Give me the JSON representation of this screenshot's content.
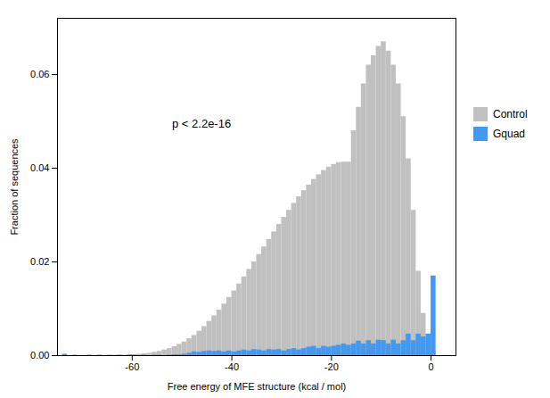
{
  "chart_data": {
    "type": "histogram",
    "xlabel": "Free energy of MFE structure (kcal / mol)",
    "ylabel": "Fraction of sequences",
    "annotations": [
      {
        "text": "p < 2.2e-16",
        "x": -52,
        "y": 0.048
      }
    ],
    "xlim": [
      -75,
      5
    ],
    "ylim": [
      0,
      0.072
    ],
    "xticks": [
      -60,
      -40,
      -20,
      0
    ],
    "yticks": [
      {
        "value": 0,
        "label": "0.00"
      },
      0.02,
      0.04,
      0.06
    ],
    "legend": "right",
    "bins": [
      -74,
      -73,
      -72,
      -71,
      -70,
      -69,
      -68,
      -67,
      -66,
      -65,
      -64,
      -63,
      -62,
      -61,
      -60,
      -59,
      -58,
      -57,
      -56,
      -55,
      -54,
      -53,
      -52,
      -51,
      -50,
      -49,
      -48,
      -47,
      -46,
      -45,
      -44,
      -43,
      -42,
      -41,
      -40,
      -39,
      -38,
      -37,
      -36,
      -35,
      -34,
      -33,
      -32,
      -31,
      -30,
      -29,
      -28,
      -27,
      -26,
      -25,
      -24,
      -23,
      -22,
      -21,
      -20,
      -19,
      -18,
      -17,
      -16,
      -15,
      -14,
      -13,
      -12,
      -11,
      -10,
      -9,
      -8,
      -7,
      -6,
      -5,
      -4,
      -3,
      -2,
      -1,
      0,
      1
    ],
    "series": [
      {
        "name": "Control",
        "color": "#c0c0c0",
        "values": [
          null,
          0.0,
          0.0,
          0.0,
          0.0,
          0.0,
          0.0,
          0.0,
          0.0,
          0.0,
          0.0001,
          0.0001,
          0.0001,
          0.0002,
          0.0002,
          0.0003,
          0.0004,
          0.0005,
          0.0007,
          0.0009,
          0.0012,
          0.0015,
          0.0019,
          0.0024,
          0.0029,
          0.0036,
          0.0043,
          0.0052,
          0.0062,
          0.0073,
          0.0085,
          0.0097,
          0.011,
          0.0124,
          0.0138,
          0.0153,
          0.0168,
          0.0184,
          0.02,
          0.0216,
          0.0232,
          0.0248,
          0.0264,
          0.028,
          0.0295,
          0.031,
          0.0325,
          0.0339,
          0.0352,
          0.0364,
          0.0376,
          0.0386,
          0.0395,
          0.0402,
          0.0408,
          0.0412,
          0.0413,
          0.0413,
          0.048,
          0.053,
          0.058,
          0.062,
          0.064,
          0.066,
          0.067,
          0.065,
          0.062,
          0.058,
          0.051,
          0.042,
          0.031,
          0.018,
          0.009,
          0.004,
          0.001
        ]
      },
      {
        "name": "Gquad",
        "color": "#4499ee",
        "values": [
          0.0003,
          0.0,
          0.0001,
          0.0,
          0.0,
          0.0001,
          0.0,
          0.0001,
          0.0,
          0.0001,
          0.0,
          0.0001,
          0.0,
          0.0001,
          0.0001,
          0.0,
          0.0001,
          0.0,
          0.0001,
          0.0001,
          0.0,
          0.0001,
          0.0002,
          0.0002,
          0.0003,
          0.0005,
          0.0008,
          0.0007,
          0.0009,
          0.001,
          0.0009,
          0.001,
          0.0008,
          0.001,
          0.0008,
          0.001,
          0.0012,
          0.001,
          0.0013,
          0.0012,
          0.001,
          0.0013,
          0.0012,
          0.0013,
          0.001,
          0.0013,
          0.0015,
          0.0012,
          0.0015,
          0.0018,
          0.002,
          0.0015,
          0.002,
          0.0018,
          0.002,
          0.0022,
          0.0025,
          0.0022,
          0.0025,
          0.0031,
          0.0025,
          0.0032,
          0.0025,
          0.0033,
          0.0032,
          0.0025,
          0.0033,
          0.0025,
          0.0032,
          0.0046,
          0.0032,
          0.0046,
          0.004,
          0.0046,
          0.017
        ]
      }
    ]
  }
}
